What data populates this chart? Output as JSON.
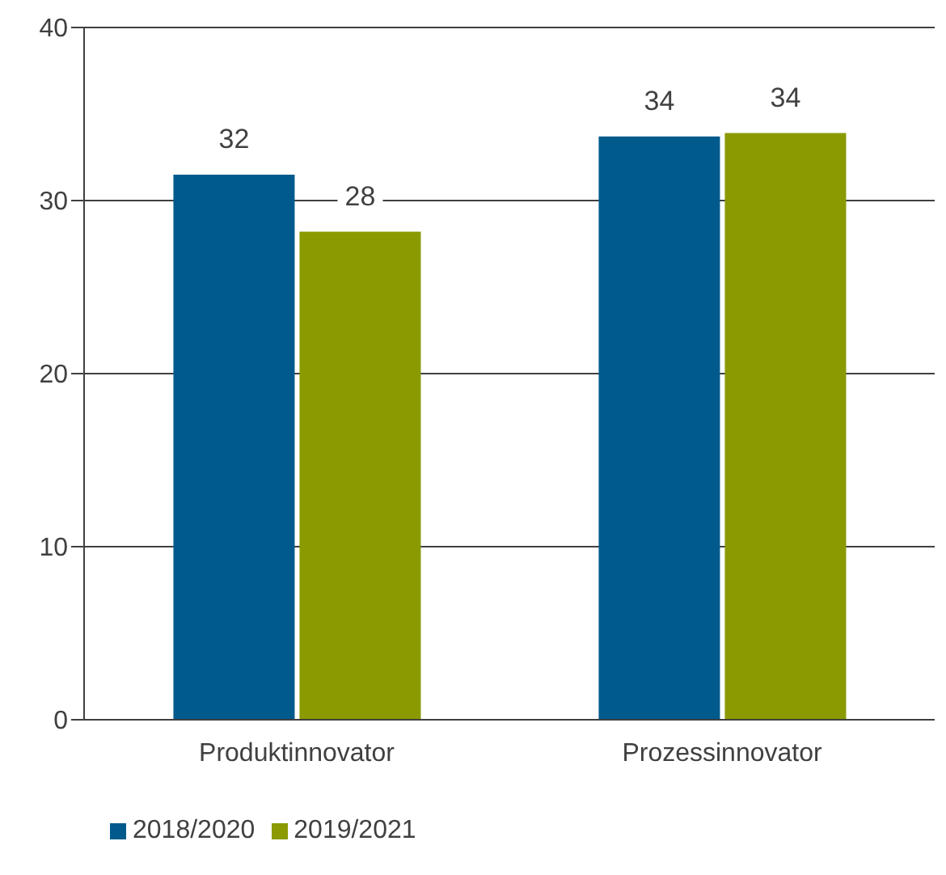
{
  "chart_data": {
    "type": "bar",
    "categories": [
      "Produktinnovator",
      "Prozessinnovator"
    ],
    "series": [
      {
        "name": "2018/2020",
        "color": "#005a8c",
        "values": [
          31.5,
          33.7
        ],
        "value_labels": [
          "32",
          "34"
        ]
      },
      {
        "name": "2019/2021",
        "color": "#8a9a00",
        "values": [
          28.2,
          33.9
        ],
        "value_labels": [
          "28",
          "34"
        ]
      }
    ],
    "ylim": [
      0,
      40
    ],
    "yticks": [
      0,
      10,
      20,
      30,
      40
    ],
    "grid": "y",
    "legend": "bottom left"
  }
}
